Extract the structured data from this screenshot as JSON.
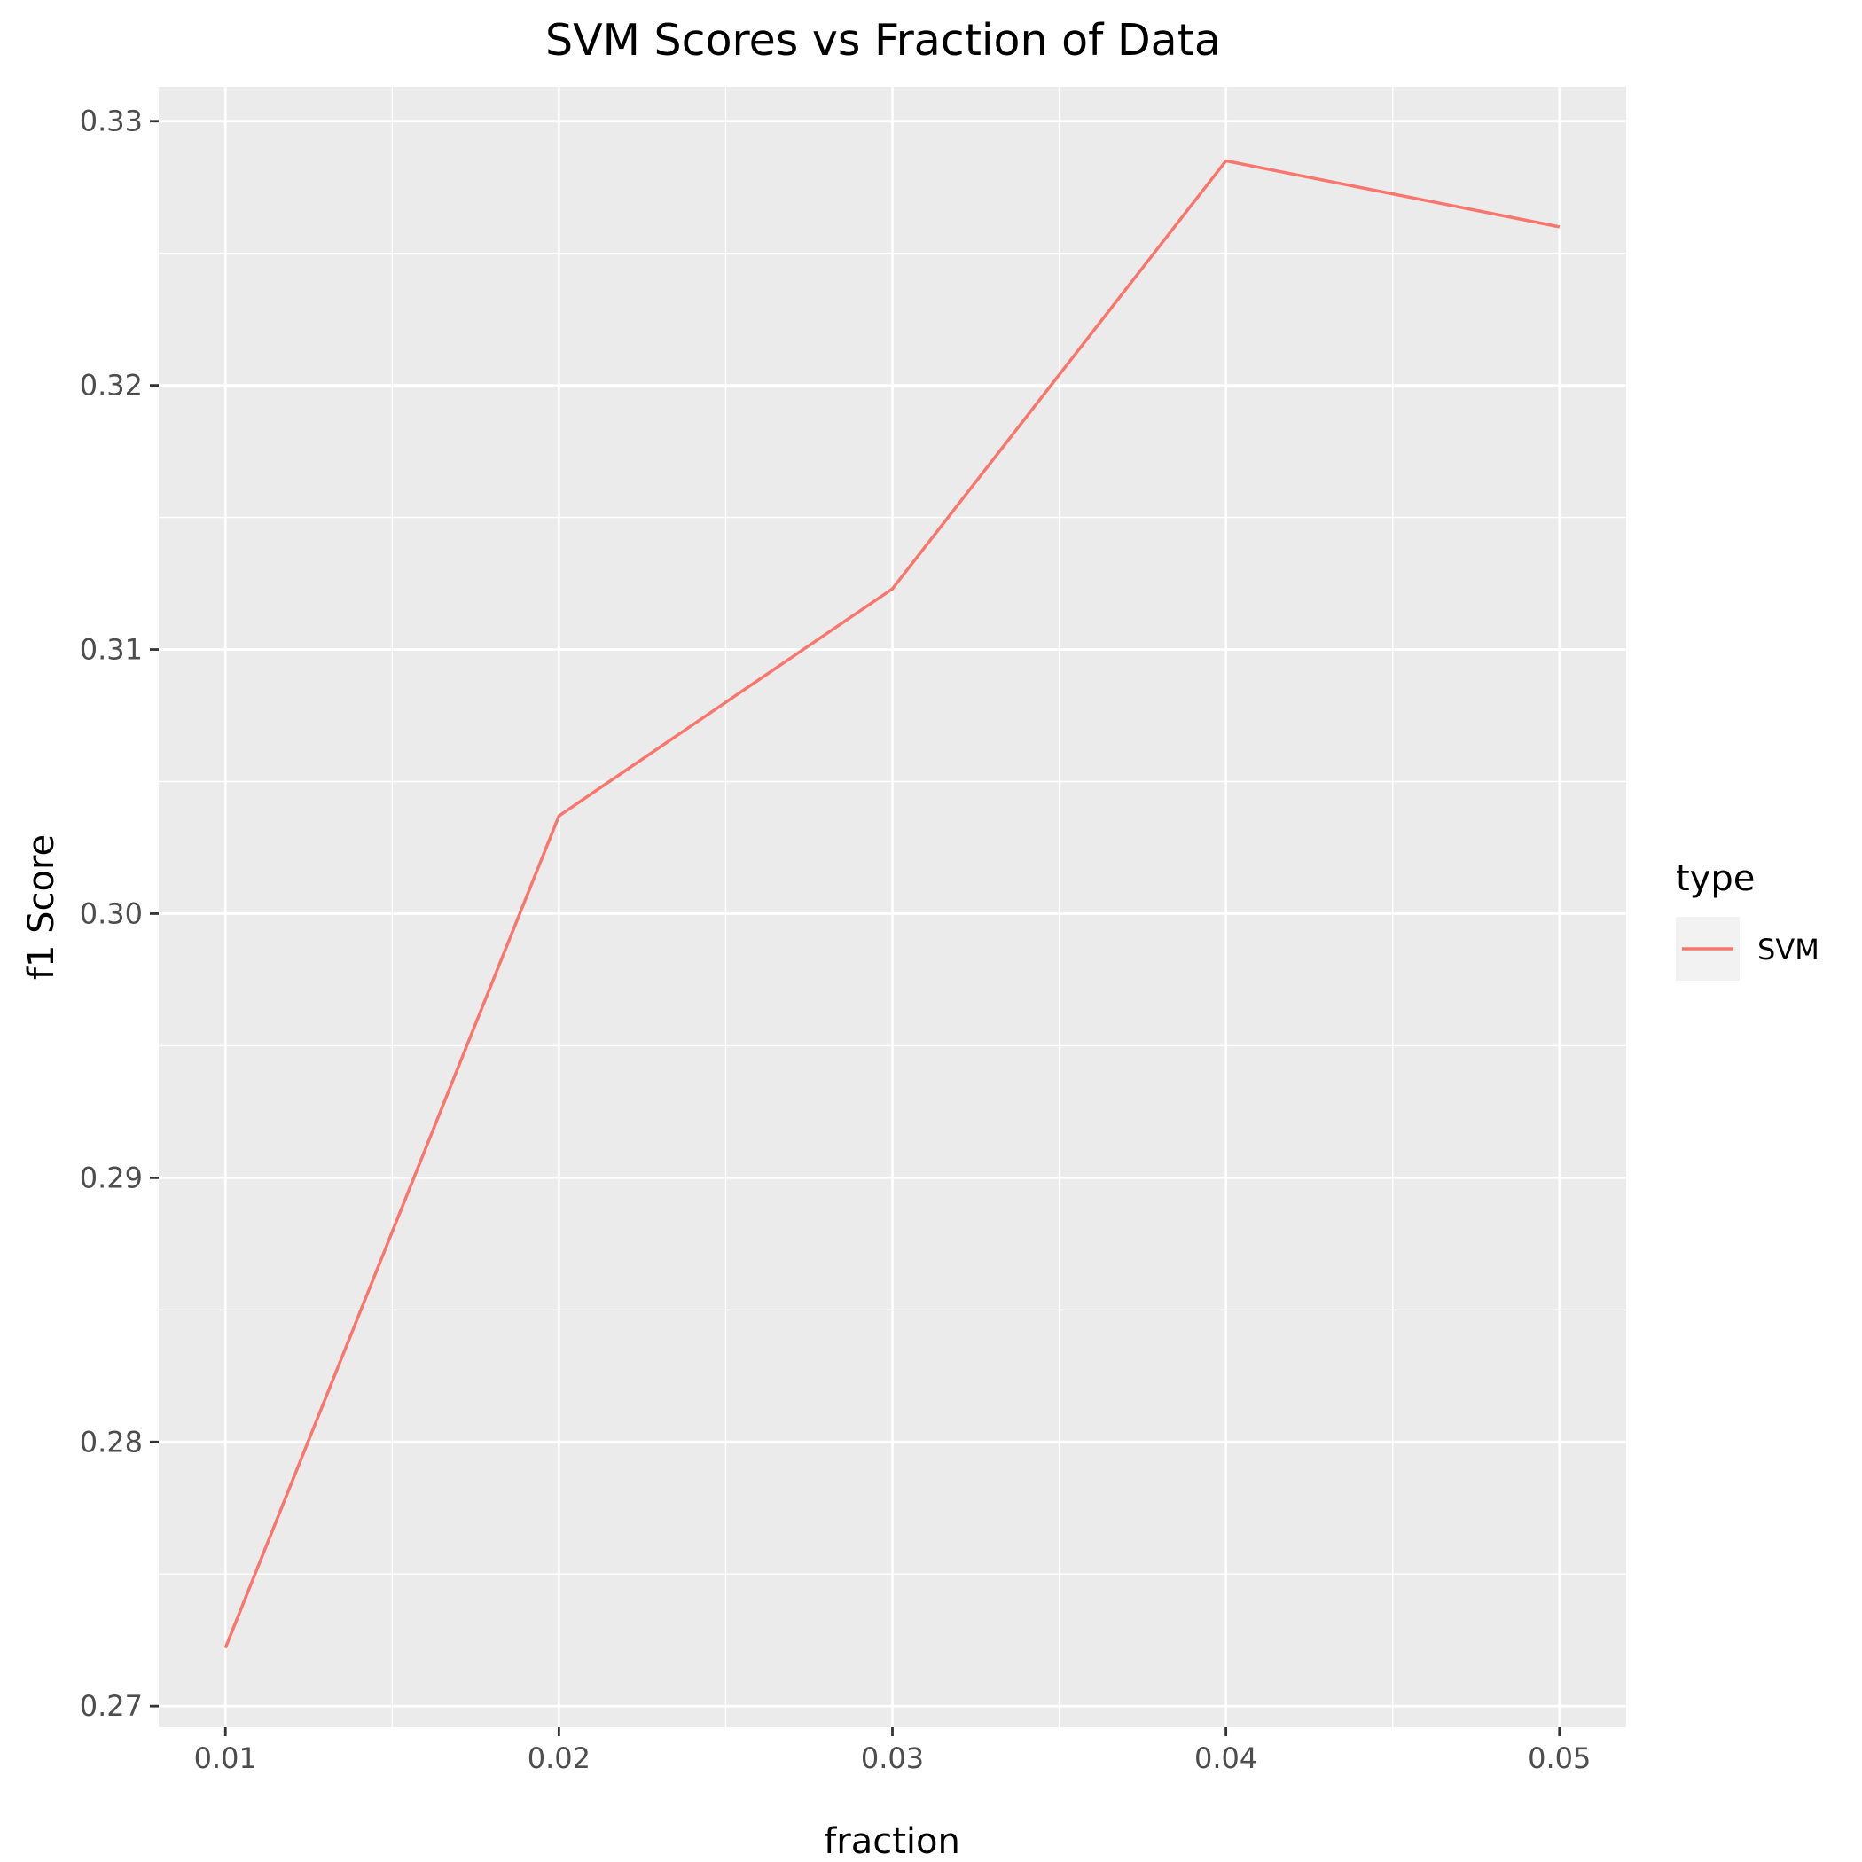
{
  "chart_data": {
    "type": "line",
    "title": "SVM Scores vs Fraction of Data",
    "xlabel": "fraction",
    "ylabel": "f1 Score",
    "x": [
      0.01,
      0.02,
      0.03,
      0.04,
      0.05
    ],
    "xlim": [
      0.008,
      0.052
    ],
    "ylim": [
      0.2692,
      0.3313
    ],
    "x_ticks": [
      "0.01",
      "0.02",
      "0.03",
      "0.04",
      "0.05"
    ],
    "y_ticks": [
      "0.27",
      "0.28",
      "0.29",
      "0.30",
      "0.31",
      "0.32",
      "0.33"
    ],
    "grid": true,
    "legend": {
      "title": "type",
      "position": "right"
    },
    "series": [
      {
        "name": "SVM",
        "color": "#F8766D",
        "values": [
          0.2722,
          0.3037,
          0.3123,
          0.3285,
          0.326
        ]
      }
    ]
  },
  "colors": {
    "panel_background": "#EBEBEB",
    "grid": "#FFFFFF",
    "legend_key_background": "#F2F2F2"
  }
}
